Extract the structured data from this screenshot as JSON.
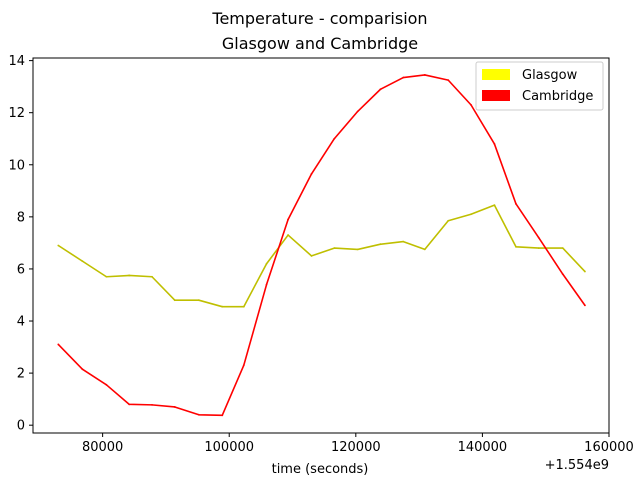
{
  "chart_data": {
    "type": "line",
    "title": "Temperature - comparision",
    "subtitle": "Glasgow and Cambridge",
    "xlabel": "time (seconds)",
    "ylabel": "",
    "x_offset_label": "+1.554e9",
    "xlim": [
      69000,
      160000
    ],
    "ylim": [
      -0.3,
      14.1
    ],
    "x_ticks": [
      80000,
      100000,
      120000,
      140000,
      160000
    ],
    "x_tick_labels": [
      "80000",
      "100000",
      "120000",
      "140000",
      "160000"
    ],
    "y_ticks": [
      0,
      2,
      4,
      6,
      8,
      10,
      12,
      14
    ],
    "y_tick_labels": [
      "0",
      "2",
      "4",
      "6",
      "8",
      "10",
      "12",
      "14"
    ],
    "grid": false,
    "legend_position": "top-right",
    "x": [
      73000,
      76800,
      80600,
      84200,
      87800,
      91400,
      95200,
      98900,
      102300,
      105900,
      109300,
      113000,
      116600,
      120300,
      123900,
      127500,
      130900,
      134600,
      138200,
      141900,
      145300,
      148900,
      152700,
      156200
    ],
    "series": [
      {
        "name": "Glasgow",
        "color": "#bfbf00",
        "legend_color": "#ffff00",
        "values": [
          6.9,
          6.3,
          5.7,
          5.75,
          5.7,
          4.8,
          4.8,
          4.55,
          4.55,
          6.2,
          7.3,
          6.5,
          6.8,
          6.75,
          6.95,
          7.05,
          6.75,
          7.85,
          8.1,
          8.45,
          6.85,
          6.8,
          6.8,
          5.9
        ]
      },
      {
        "name": "Cambridge",
        "color": "#ff0000",
        "legend_color": "#ff0000",
        "values": [
          3.1,
          2.15,
          1.55,
          0.8,
          0.78,
          0.7,
          0.4,
          0.38,
          2.3,
          5.4,
          7.9,
          9.65,
          11.0,
          12.05,
          12.9,
          13.35,
          13.45,
          13.25,
          12.3,
          10.8,
          8.5,
          7.2,
          5.8,
          4.6
        ]
      }
    ]
  }
}
